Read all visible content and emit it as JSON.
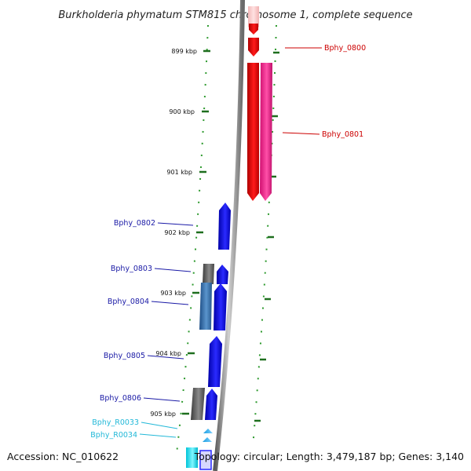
{
  "title": "Burkholderia phymatum STM815 chromosome 1, complete sequence",
  "scale_labels": [
    "899 kbp",
    "900 kbp",
    "901 kbp",
    "902 kbp",
    "903 kbp",
    "904 kbp",
    "905 kbp"
  ],
  "genes_right": [
    {
      "id": "Bphy_0800",
      "color": "#cc0000"
    },
    {
      "id": "Bphy_0801",
      "color": "#cc0000"
    }
  ],
  "genes_left": [
    {
      "id": "Bphy_0802",
      "color": "#1a1aa6"
    },
    {
      "id": "Bphy_0803",
      "color": "#1a1aa6"
    },
    {
      "id": "Bphy_0804",
      "color": "#1a1aa6"
    },
    {
      "id": "Bphy_0805",
      "color": "#1a1aa6"
    },
    {
      "id": "Bphy_0806",
      "color": "#1a1aa6"
    },
    {
      "id": "Bphy_R0033",
      "color": "#22b8d8"
    },
    {
      "id": "Bphy_R0034",
      "color": "#22b8d8"
    }
  ],
  "footer": {
    "accession": "Accession: NC_010622",
    "topology": "Topology: circular; Length: 3,479,187 bp; Genes: 3,140"
  }
}
